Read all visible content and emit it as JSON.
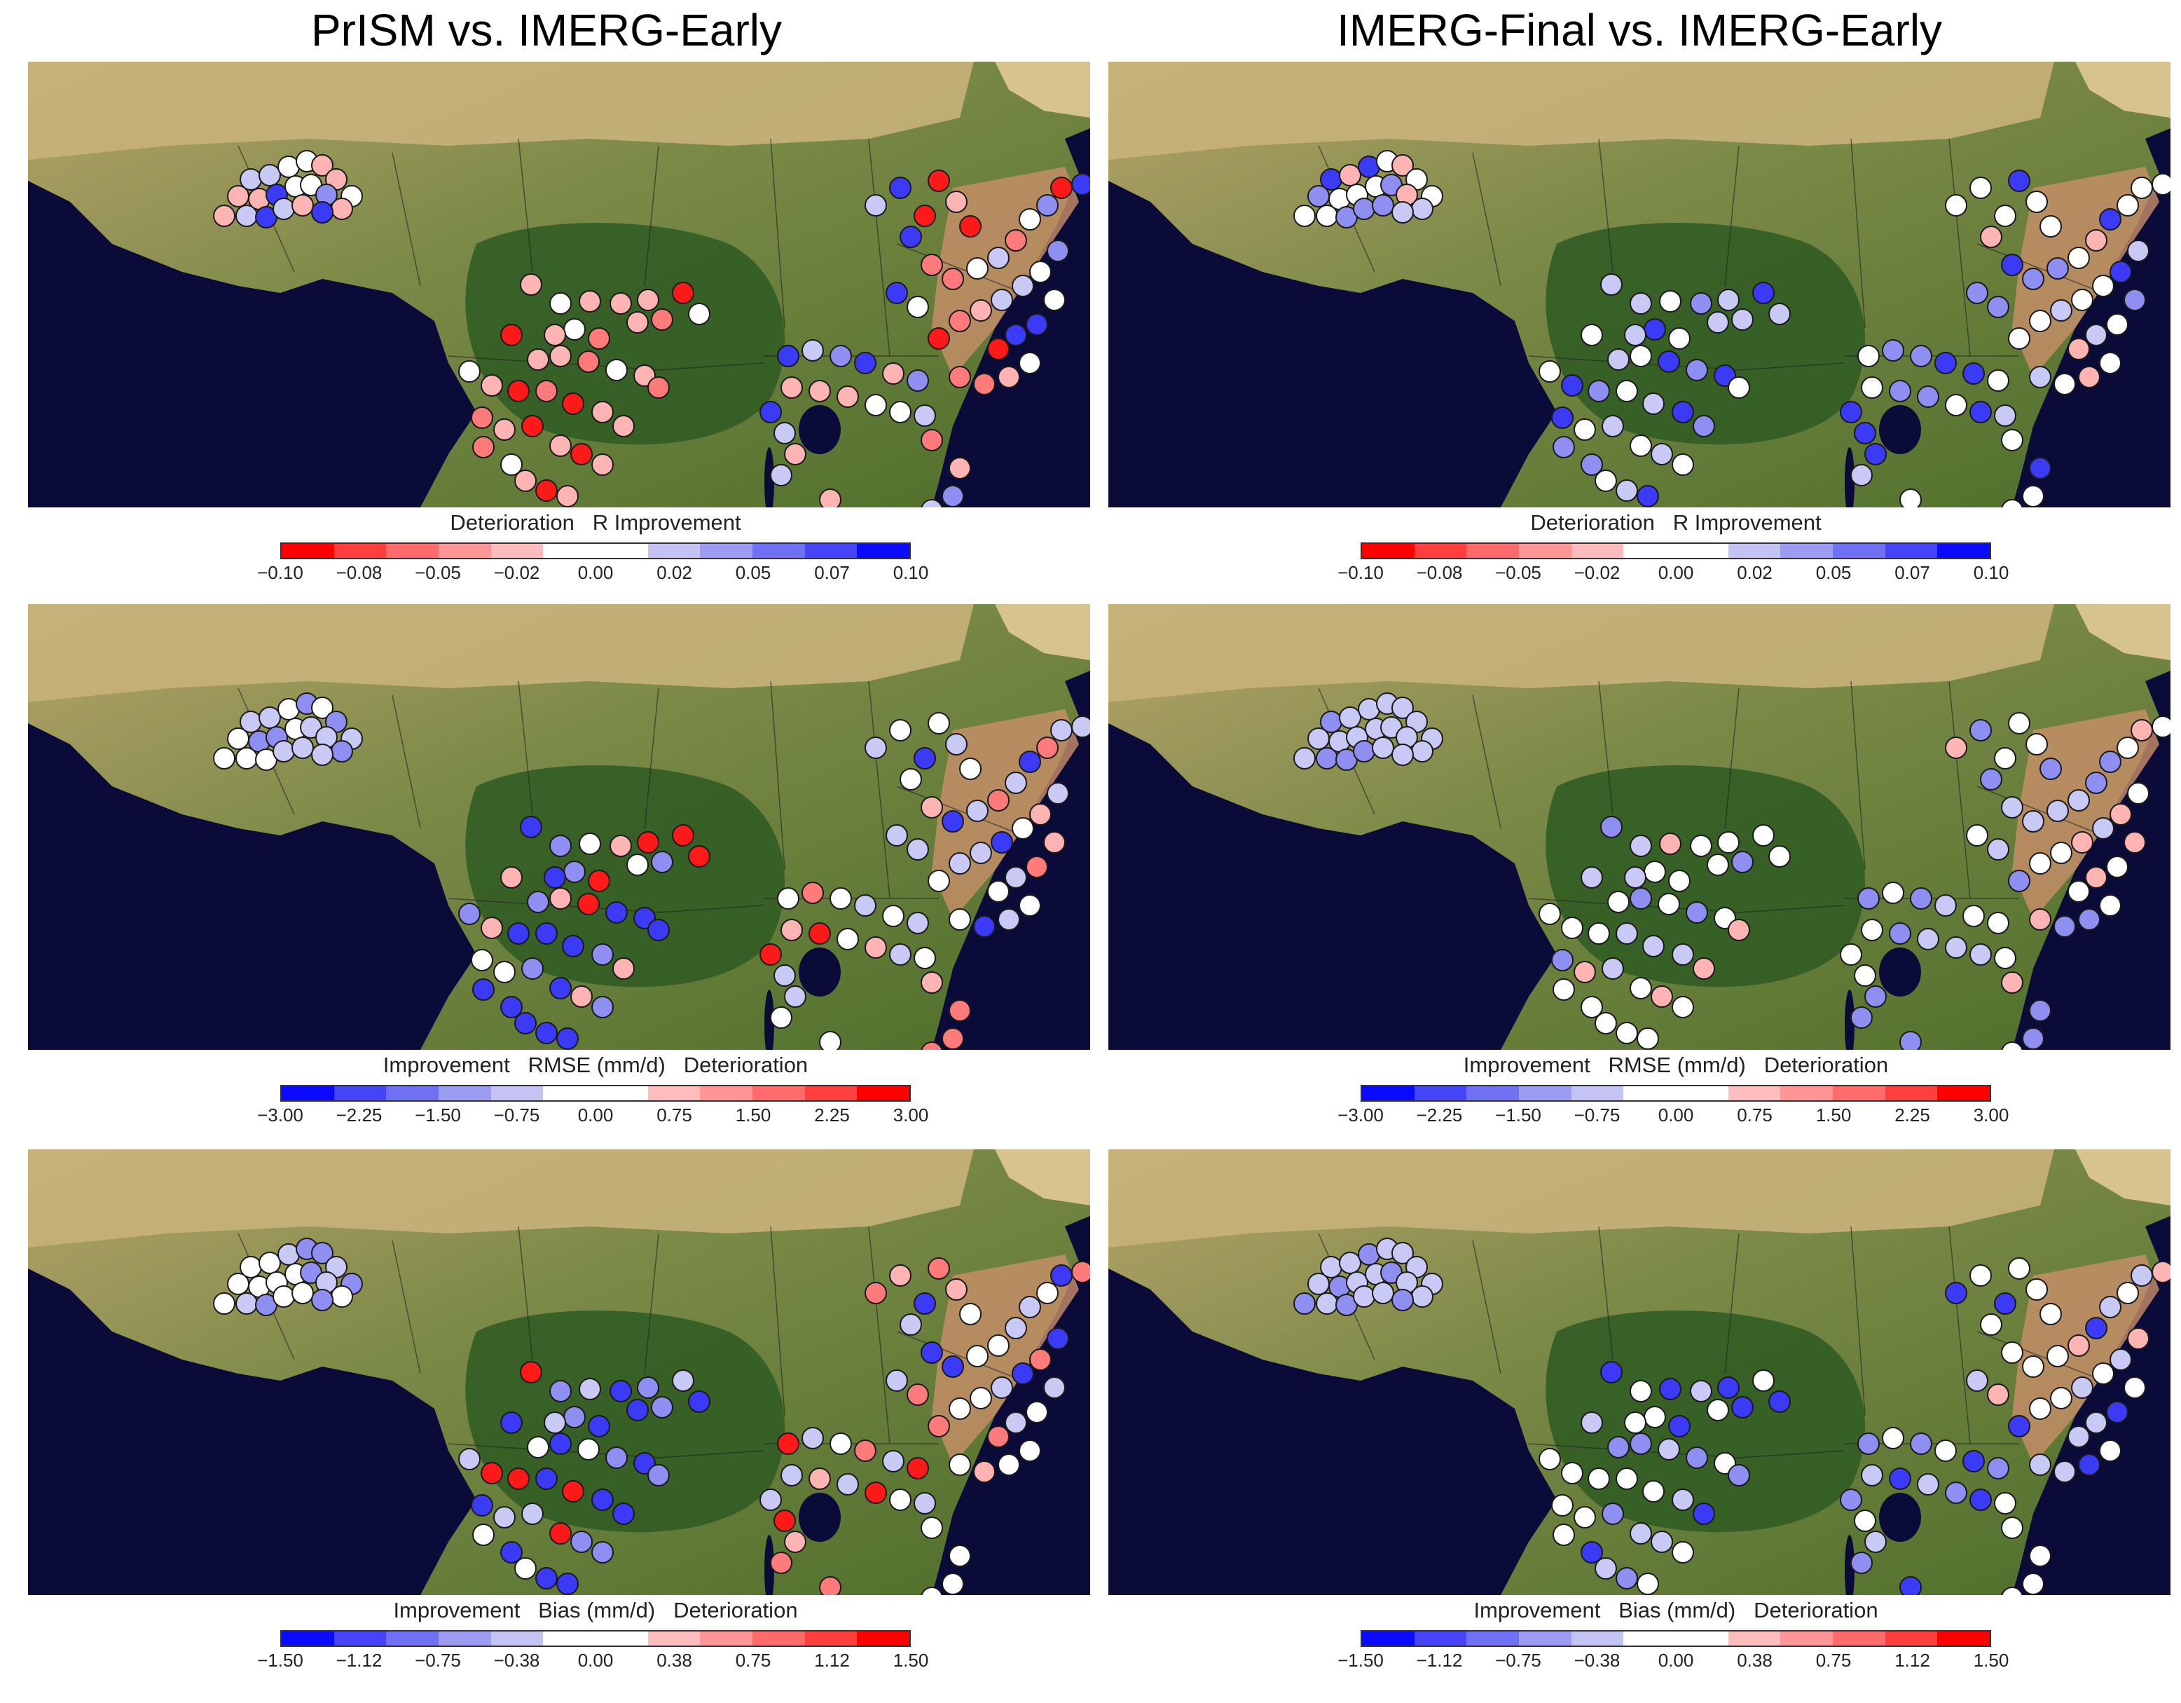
{
  "columns": [
    {
      "title": "PrISM vs. IMERG-Early"
    },
    {
      "title": "IMERG-Final vs. IMERG-Early"
    }
  ],
  "colormap": [
    "#ff0000",
    "#ff3e3e",
    "#ff6a6a",
    "#ff9595",
    "#ffbcbc",
    "#ffffff",
    "#ffffff",
    "#c4c4f4",
    "#9c9cf3",
    "#7070f4",
    "#4545f7",
    "#0a0aff"
  ],
  "colorbars": {
    "r": {
      "title_left": "Deterioration   R Improvement",
      "ticks": [
        "−0.10",
        "−0.08",
        "−0.05",
        "−0.02",
        "0.00",
        "0.02",
        "0.05",
        "0.07",
        "0.10"
      ],
      "reverse": false
    },
    "rmse": {
      "title_left": "Improvement   RMSE (mm/d)   Deterioration",
      "ticks": [
        "−3.00",
        "−2.25",
        "−1.50",
        "−0.75",
        "0.00",
        "0.75",
        "1.50",
        "2.25",
        "3.00"
      ],
      "reverse": true
    },
    "bias": {
      "title_left": "Improvement   Bias (mm/d)   Deterioration",
      "ticks": [
        "−1.50",
        "−1.12",
        "−0.75",
        "−0.38",
        "0.00",
        "0.38",
        "0.75",
        "1.12",
        "1.50"
      ],
      "reverse": true
    }
  },
  "map": {
    "region": "Central and East Africa",
    "background": "satellite true-color",
    "marker": "circle",
    "station_colors": {
      "white": "#ffffff",
      "light_blue": "#c9c9f5",
      "mid_blue": "#8f8ff2",
      "blue": "#3b3bf5",
      "light_red": "#ffb4b4",
      "mid_red": "#ff7b7b",
      "red": "#ff1a1a"
    }
  },
  "panels": [
    {
      "id": "r-prism",
      "metric": "R",
      "scheme": "A"
    },
    {
      "id": "r-final",
      "metric": "R",
      "scheme": "B"
    },
    {
      "id": "rmse-prism",
      "metric": "RMSE",
      "scheme": "C"
    },
    {
      "id": "rmse-final",
      "metric": "RMSE",
      "scheme": "D"
    },
    {
      "id": "bias-prism",
      "metric": "Bias",
      "scheme": "E"
    },
    {
      "id": "bias-final",
      "metric": "Bias",
      "scheme": "F"
    }
  ]
}
